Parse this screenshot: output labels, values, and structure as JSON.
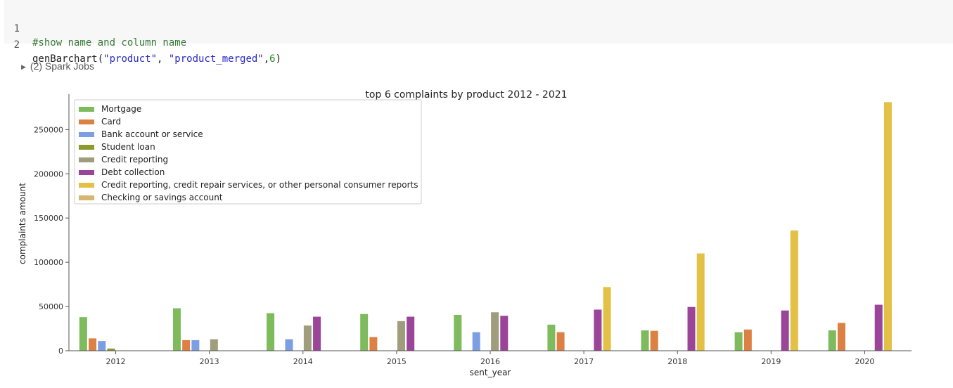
{
  "code": {
    "lines": [
      {
        "number": "1",
        "comment": "#show name and column name"
      },
      {
        "number": "2",
        "fn": "genBarchart",
        "open": "(",
        "arg1": "\"product\"",
        "sep1": ", ",
        "arg2": "\"product_merged\"",
        "sep2": ",",
        "arg3": "6",
        "close": ")"
      }
    ]
  },
  "spark_jobs": {
    "label": "(2) Spark Jobs"
  },
  "chart_data": {
    "type": "bar",
    "title": "top 6 complaints by product 2012 - 2021",
    "xlabel": "sent_year",
    "ylabel": "complaints amount",
    "ylim": [
      0,
      290000
    ],
    "yticks": [
      0,
      50000,
      100000,
      150000,
      200000,
      250000
    ],
    "ytick_labels": [
      "0",
      "50000",
      "100000",
      "150000",
      "200000",
      "250000"
    ],
    "categories": [
      "2012",
      "2013",
      "2014",
      "2015",
      "2016",
      "2017",
      "2018",
      "2019",
      "2020"
    ],
    "legend_position": "top-left",
    "grid": false,
    "series": [
      {
        "name": "Mortgage",
        "color": "#7dbb5c",
        "values": [
          38000,
          48000,
          42500,
          41500,
          40500,
          29500,
          23000,
          21000,
          23000
        ]
      },
      {
        "name": "Card",
        "color": "#dd8044",
        "values": [
          14000,
          12000,
          null,
          15500,
          null,
          21000,
          22500,
          24000,
          31500
        ]
      },
      {
        "name": "Bank account or service",
        "color": "#7c9fe3",
        "values": [
          11000,
          12000,
          13000,
          null,
          21000,
          null,
          null,
          null,
          null
        ]
      },
      {
        "name": "Student loan",
        "color": "#8b9a2a",
        "values": [
          2500,
          null,
          null,
          null,
          null,
          null,
          null,
          null,
          null
        ]
      },
      {
        "name": "Credit reporting",
        "color": "#a09d7c",
        "values": [
          null,
          13000,
          28500,
          33500,
          43500,
          null,
          null,
          null,
          null
        ]
      },
      {
        "name": "Debt collection",
        "color": "#9b4599",
        "values": [
          null,
          null,
          38500,
          38500,
          39500,
          46500,
          49500,
          45500,
          52000
        ]
      },
      {
        "name": "Credit reporting, credit repair services, or other personal consumer reports",
        "color": "#e3c147",
        "values": [
          null,
          null,
          null,
          null,
          null,
          72000,
          110000,
          136000,
          281000
        ]
      },
      {
        "name": "Checking or savings account",
        "color": "#d6b772",
        "values": [
          null,
          null,
          null,
          null,
          null,
          null,
          null,
          null,
          null
        ]
      }
    ]
  }
}
